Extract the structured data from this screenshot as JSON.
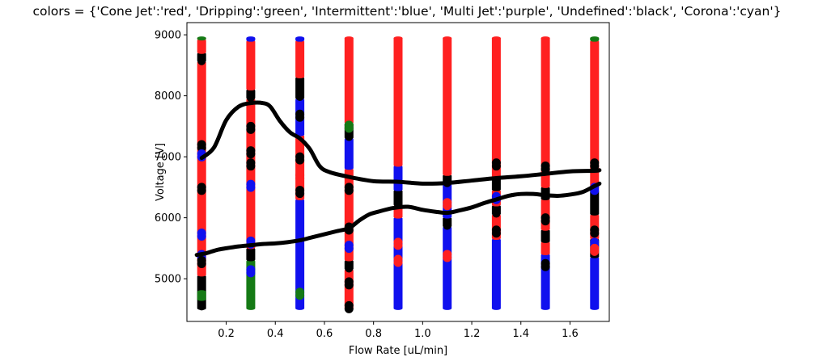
{
  "chart_data": {
    "type": "scatter",
    "title": "colors = {'Cone Jet':'red', 'Dripping':'green', 'Intermittent':'blue', 'Multi Jet':'purple', 'Undefined':'black', 'Corona':'cyan'}",
    "xlabel": "Flow Rate [uL/min]",
    "ylabel": "Voltage [V]",
    "xlim": [
      0.04,
      1.76
    ],
    "ylim": [
      4300,
      9200
    ],
    "xticks": [
      {
        "value": 0.2,
        "label": "0.2"
      },
      {
        "value": 0.4,
        "label": "0.4"
      },
      {
        "value": 0.6,
        "label": "0.6"
      },
      {
        "value": 0.8,
        "label": "0.8"
      },
      {
        "value": 1.0,
        "label": "1.0"
      },
      {
        "value": 1.2,
        "label": "1.2"
      },
      {
        "value": 1.4,
        "label": "1.4"
      },
      {
        "value": 1.6,
        "label": "1.6"
      }
    ],
    "yticks": [
      {
        "value": 5000,
        "label": "5000"
      },
      {
        "value": 6000,
        "label": "6000"
      },
      {
        "value": 7000,
        "label": "7000"
      },
      {
        "value": 8000,
        "label": "8000"
      },
      {
        "value": 9000,
        "label": "9000"
      }
    ],
    "grid": false,
    "colors": {
      "Cone Jet": "#ff2020",
      "Dripping": "#157a15",
      "Intermittent": "#1010ee",
      "Undefined": "#000000"
    },
    "columns": [
      {
        "x": 0.1,
        "segments": [
          {
            "class": "Undefined",
            "from": 4500,
            "to": 5050
          },
          {
            "class": "Dripping",
            "from": 4650,
            "to": 4800
          },
          {
            "class": "Cone Jet",
            "from": 5050,
            "to": 8560
          },
          {
            "class": "Undefined",
            "from": 8560,
            "to": 8700
          },
          {
            "class": "Cone Jet",
            "from": 8700,
            "to": 8920
          },
          {
            "class": "Dripping",
            "from": 8920,
            "to": 8960
          }
        ],
        "accents": [
          {
            "class": "Intermittent",
            "y": 5400
          },
          {
            "class": "Intermittent",
            "y": 5750
          },
          {
            "class": "Undefined",
            "y": 7200
          },
          {
            "class": "Undefined",
            "y": 6500
          },
          {
            "class": "Undefined",
            "y": 5300
          },
          {
            "class": "Intermittent",
            "y": 7050
          }
        ]
      },
      {
        "x": 0.3,
        "segments": [
          {
            "class": "Dripping",
            "from": 4500,
            "to": 5300
          },
          {
            "class": "Undefined",
            "from": 5300,
            "to": 5500
          },
          {
            "class": "Cone Jet",
            "from": 5500,
            "to": 7950
          },
          {
            "class": "Undefined",
            "from": 7950,
            "to": 8100
          },
          {
            "class": "Cone Jet",
            "from": 8100,
            "to": 8900
          },
          {
            "class": "Intermittent",
            "from": 8900,
            "to": 8960
          }
        ],
        "accents": [
          {
            "class": "Intermittent",
            "y": 5620
          },
          {
            "class": "Intermittent",
            "y": 6550
          },
          {
            "class": "Undefined",
            "y": 7500
          },
          {
            "class": "Undefined",
            "y": 6900
          },
          {
            "class": "Undefined",
            "y": 7100
          },
          {
            "class": "Intermittent",
            "y": 5150
          }
        ]
      },
      {
        "x": 0.5,
        "segments": [
          {
            "class": "Intermittent",
            "from": 4500,
            "to": 6300
          },
          {
            "class": "Cone Jet",
            "from": 6300,
            "to": 7350
          },
          {
            "class": "Intermittent",
            "from": 7350,
            "to": 7950
          },
          {
            "class": "Undefined",
            "from": 7950,
            "to": 8300
          },
          {
            "class": "Cone Jet",
            "from": 8300,
            "to": 8900
          },
          {
            "class": "Intermittent",
            "from": 8900,
            "to": 8960
          }
        ],
        "accents": [
          {
            "class": "Dripping",
            "y": 4780
          },
          {
            "class": "Cone Jet",
            "y": 6700
          },
          {
            "class": "Undefined",
            "y": 7700
          },
          {
            "class": "Undefined",
            "y": 7000
          },
          {
            "class": "Undefined",
            "y": 6450
          }
        ]
      },
      {
        "x": 0.7,
        "segments": [
          {
            "class": "Cone Jet",
            "from": 4500,
            "to": 5150
          },
          {
            "class": "Undefined",
            "from": 5150,
            "to": 5300
          },
          {
            "class": "Cone Jet",
            "from": 5300,
            "to": 6800
          },
          {
            "class": "Intermittent",
            "from": 6800,
            "to": 7300
          },
          {
            "class": "Undefined",
            "from": 7300,
            "to": 7550
          },
          {
            "class": "Cone Jet",
            "from": 7550,
            "to": 8960
          }
        ],
        "accents": [
          {
            "class": "Dripping",
            "y": 7520
          },
          {
            "class": "Undefined",
            "y": 4950
          },
          {
            "class": "Undefined",
            "y": 6500
          },
          {
            "class": "Undefined",
            "y": 5850
          },
          {
            "class": "Intermittent",
            "y": 5550
          },
          {
            "class": "Undefined",
            "y": 4560
          }
        ]
      },
      {
        "x": 0.9,
        "segments": [
          {
            "class": "Intermittent",
            "from": 4500,
            "to": 6000
          },
          {
            "class": "Cone Jet",
            "from": 6000,
            "to": 6200
          },
          {
            "class": "Undefined",
            "from": 6200,
            "to": 6450
          },
          {
            "class": "Intermittent",
            "from": 6450,
            "to": 6850
          },
          {
            "class": "Cone Jet",
            "from": 6850,
            "to": 8960
          }
        ],
        "accents": [
          {
            "class": "Cone Jet",
            "y": 5320
          },
          {
            "class": "Cone Jet",
            "y": 5600
          },
          {
            "class": "Intermittent",
            "y": 5800
          }
        ]
      },
      {
        "x": 1.1,
        "segments": [
          {
            "class": "Intermittent",
            "from": 4500,
            "to": 5850
          },
          {
            "class": "Undefined",
            "from": 5850,
            "to": 6000
          },
          {
            "class": "Intermittent",
            "from": 6000,
            "to": 6550
          },
          {
            "class": "Undefined",
            "from": 6550,
            "to": 6700
          },
          {
            "class": "Cone Jet",
            "from": 6700,
            "to": 8960
          }
        ],
        "accents": [
          {
            "class": "Cone Jet",
            "y": 5400
          },
          {
            "class": "Cone Jet",
            "y": 6250
          }
        ]
      },
      {
        "x": 1.3,
        "segments": [
          {
            "class": "Intermittent",
            "from": 4500,
            "to": 5650
          },
          {
            "class": "Cone Jet",
            "from": 5650,
            "to": 6050
          },
          {
            "class": "Undefined",
            "from": 6050,
            "to": 6200
          },
          {
            "class": "Cone Jet",
            "from": 6200,
            "to": 6450
          },
          {
            "class": "Undefined",
            "from": 6450,
            "to": 6650
          },
          {
            "class": "Cone Jet",
            "from": 6650,
            "to": 8960
          }
        ],
        "accents": [
          {
            "class": "Undefined",
            "y": 5800
          },
          {
            "class": "Intermittent",
            "y": 6350
          },
          {
            "class": "Undefined",
            "y": 6900
          }
        ]
      },
      {
        "x": 1.5,
        "segments": [
          {
            "class": "Intermittent",
            "from": 4500,
            "to": 5400
          },
          {
            "class": "Cone Jet",
            "from": 5400,
            "to": 5600
          },
          {
            "class": "Undefined",
            "from": 5600,
            "to": 5800
          },
          {
            "class": "Cone Jet",
            "from": 5800,
            "to": 6300
          },
          {
            "class": "Undefined",
            "from": 6300,
            "to": 6500
          },
          {
            "class": "Cone Jet",
            "from": 6500,
            "to": 8960
          }
        ],
        "accents": [
          {
            "class": "Undefined",
            "y": 6000
          },
          {
            "class": "Undefined",
            "y": 6850
          },
          {
            "class": "Undefined",
            "y": 5250
          }
        ]
      },
      {
        "x": 1.7,
        "segments": [
          {
            "class": "Intermittent",
            "from": 4500,
            "to": 5350
          },
          {
            "class": "Undefined",
            "from": 5350,
            "to": 5650
          },
          {
            "class": "Cone Jet",
            "from": 5650,
            "to": 6050
          },
          {
            "class": "Undefined",
            "from": 6050,
            "to": 6450
          },
          {
            "class": "Cone Jet",
            "from": 6450,
            "to": 8900
          },
          {
            "class": "Dripping",
            "from": 8900,
            "to": 8960
          }
        ],
        "accents": [
          {
            "class": "Intermittent",
            "y": 5600
          },
          {
            "class": "Undefined",
            "y": 5800
          },
          {
            "class": "Undefined",
            "y": 6900
          },
          {
            "class": "Intermittent",
            "y": 6500
          },
          {
            "class": "Cone Jet",
            "y": 5500
          }
        ]
      }
    ],
    "boundary_curves": [
      {
        "class": "Undefined",
        "x": [
          0.1,
          0.15,
          0.2,
          0.25,
          0.3,
          0.35,
          0.38,
          0.42,
          0.46,
          0.5,
          0.54,
          0.58,
          0.62,
          0.7,
          0.8,
          0.9,
          1.0,
          1.1,
          1.2,
          1.3,
          1.4,
          1.5,
          1.6,
          1.7,
          1.72
        ],
        "y": [
          6980,
          7150,
          7600,
          7820,
          7880,
          7880,
          7820,
          7580,
          7400,
          7300,
          7130,
          6850,
          6750,
          6670,
          6600,
          6590,
          6560,
          6570,
          6610,
          6650,
          6680,
          6720,
          6760,
          6770,
          6780
        ]
      },
      {
        "class": "Undefined",
        "x": [
          0.08,
          0.12,
          0.16,
          0.2,
          0.25,
          0.3,
          0.35,
          0.4,
          0.45,
          0.5,
          0.55,
          0.6,
          0.65,
          0.7,
          0.74,
          0.78,
          0.82,
          0.88,
          0.94,
          1.0,
          1.05,
          1.1,
          1.15,
          1.2,
          1.25,
          1.3,
          1.35,
          1.4,
          1.45,
          1.5,
          1.55,
          1.6,
          1.65,
          1.7,
          1.72
        ],
        "y": [
          5390,
          5420,
          5470,
          5500,
          5530,
          5550,
          5570,
          5580,
          5600,
          5630,
          5680,
          5730,
          5780,
          5830,
          5950,
          6050,
          6100,
          6160,
          6180,
          6130,
          6100,
          6080,
          6120,
          6170,
          6240,
          6300,
          6360,
          6390,
          6390,
          6370,
          6360,
          6380,
          6420,
          6520,
          6560
        ]
      }
    ]
  }
}
